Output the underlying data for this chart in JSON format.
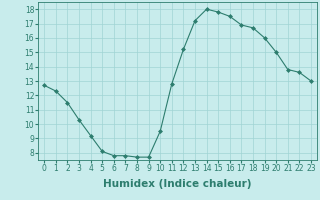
{
  "x": [
    0,
    1,
    2,
    3,
    4,
    5,
    6,
    7,
    8,
    9,
    10,
    11,
    12,
    13,
    14,
    15,
    16,
    17,
    18,
    19,
    20,
    21,
    22,
    23
  ],
  "y": [
    12.7,
    12.3,
    11.5,
    10.3,
    9.2,
    8.1,
    7.8,
    7.8,
    7.7,
    7.7,
    9.5,
    12.8,
    15.2,
    17.2,
    18.0,
    17.8,
    17.5,
    16.9,
    16.7,
    16.0,
    15.0,
    13.8,
    13.6,
    13.0
  ],
  "xlabel": "Humidex (Indice chaleur)",
  "ylabel_ticks": [
    8,
    9,
    10,
    11,
    12,
    13,
    14,
    15,
    16,
    17,
    18
  ],
  "ylim": [
    7.5,
    18.5
  ],
  "xlim": [
    -0.5,
    23.5
  ],
  "line_color": "#2d7d6e",
  "marker": "D",
  "marker_size": 2.0,
  "background_color": "#c8ecec",
  "grid_color": "#a0d4d4",
  "tick_fontsize": 5.5,
  "xlabel_fontsize": 7.5,
  "linewidth": 0.8
}
